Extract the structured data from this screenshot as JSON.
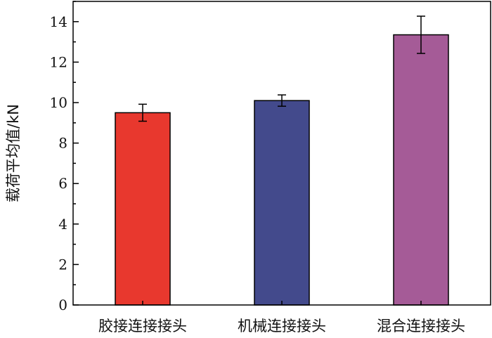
{
  "chart_data": {
    "type": "bar",
    "title": "",
    "xlabel": "",
    "ylabel": "载荷平均值/kN",
    "categories": [
      "胶接连接接头",
      "机械连接接头",
      "混合连接接头"
    ],
    "values": [
      9.5,
      10.1,
      13.35
    ],
    "errors": [
      0.42,
      0.28,
      0.92
    ],
    "colors": [
      "#e8382e",
      "#434a8c",
      "#a55b97"
    ],
    "ylim": [
      0,
      15
    ],
    "yticks": [
      0,
      2,
      4,
      6,
      8,
      10,
      12,
      14
    ],
    "grid": false,
    "legend": "none"
  }
}
